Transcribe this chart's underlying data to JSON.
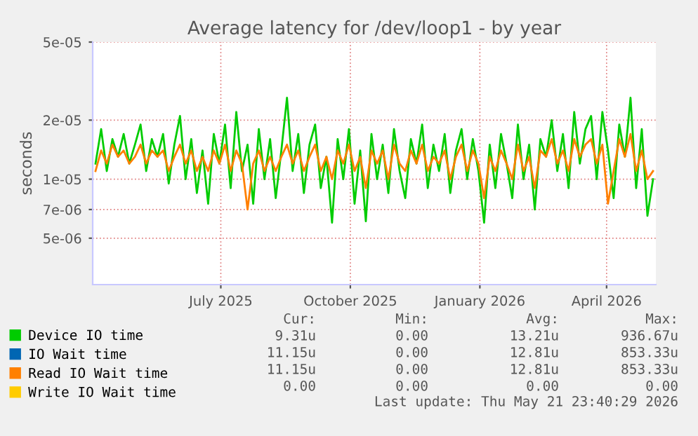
{
  "chart_data": {
    "type": "line",
    "title": "Average latency for /dev/loop1 - by year",
    "ylabel": "seconds",
    "log": "y",
    "ylim": [
      2.9e-06,
      5e-05
    ],
    "yticks": [
      5e-06,
      7e-06,
      1e-05,
      2e-05,
      5e-05
    ],
    "xlim": [
      "2025-04-16",
      "2026-05-21"
    ],
    "xticks": [
      {
        "value": "2025-07-16",
        "label": "July 2025"
      },
      {
        "value": "2025-10-16",
        "label": "October 2025"
      },
      {
        "value": "2026-01-16",
        "label": "January 2026"
      },
      {
        "value": "2026-04-16",
        "label": "April 2026"
      }
    ],
    "grid": true,
    "legend": "bottom",
    "x": [
      "2025-04-18",
      "2025-04-22",
      "2025-04-26",
      "2025-04-30",
      "2025-05-04",
      "2025-05-08",
      "2025-05-12",
      "2025-05-16",
      "2025-05-20",
      "2025-05-24",
      "2025-05-28",
      "2025-06-01",
      "2025-06-05",
      "2025-06-09",
      "2025-06-13",
      "2025-06-17",
      "2025-06-21",
      "2025-06-25",
      "2025-06-29",
      "2025-07-03",
      "2025-07-07",
      "2025-07-11",
      "2025-07-15",
      "2025-07-19",
      "2025-07-23",
      "2025-07-27",
      "2025-07-31",
      "2025-08-04",
      "2025-08-08",
      "2025-08-12",
      "2025-08-16",
      "2025-08-20",
      "2025-08-24",
      "2025-08-28",
      "2025-09-01",
      "2025-09-05",
      "2025-09-09",
      "2025-09-13",
      "2025-09-17",
      "2025-09-21",
      "2025-09-25",
      "2025-09-29",
      "2025-10-03",
      "2025-10-07",
      "2025-10-11",
      "2025-10-15",
      "2025-10-19",
      "2025-10-23",
      "2025-10-27",
      "2025-10-31",
      "2025-11-04",
      "2025-11-08",
      "2025-11-12",
      "2025-11-16",
      "2025-11-20",
      "2025-11-24",
      "2025-11-28",
      "2025-12-02",
      "2025-12-06",
      "2025-12-10",
      "2025-12-14",
      "2025-12-18",
      "2025-12-22",
      "2025-12-26",
      "2025-12-30",
      "2026-01-03",
      "2026-01-07",
      "2026-01-11",
      "2026-01-15",
      "2026-01-19",
      "2026-01-23",
      "2026-01-27",
      "2026-01-31",
      "2026-02-04",
      "2026-02-08",
      "2026-02-12",
      "2026-02-16",
      "2026-02-20",
      "2026-02-24",
      "2026-02-28",
      "2026-03-04",
      "2026-03-08",
      "2026-03-12",
      "2026-03-16",
      "2026-03-20",
      "2026-03-24",
      "2026-03-28",
      "2026-04-01",
      "2026-04-05",
      "2026-04-09",
      "2026-04-13",
      "2026-04-17",
      "2026-04-21",
      "2026-04-25",
      "2026-04-29",
      "2026-05-03",
      "2026-05-07",
      "2026-05-11",
      "2026-05-15",
      "2026-05-19"
    ],
    "series": [
      {
        "name": "Device IO time",
        "color": "#00cc00",
        "values": [
          1.2e-05,
          1.8e-05,
          1.1e-05,
          1.6e-05,
          1.3e-05,
          1.7e-05,
          1.2e-05,
          1.5e-05,
          1.9e-05,
          1.1e-05,
          1.6e-05,
          1.3e-05,
          1.7e-05,
          9.5e-06,
          1.5e-05,
          2.1e-05,
          1e-05,
          1.6e-05,
          8.5e-06,
          1.4e-05,
          7.5e-06,
          1.7e-05,
          1.2e-05,
          1.9e-05,
          9e-06,
          2.2e-05,
          1.1e-05,
          1.5e-05,
          7.5e-06,
          1.8e-05,
          1e-05,
          1.6e-05,
          8e-06,
          1.4e-05,
          2.6e-05,
          1.1e-05,
          1.7e-05,
          8.5e-06,
          1.5e-05,
          1.9e-05,
          9e-06,
          1.3e-05,
          6e-06,
          1.6e-05,
          1e-05,
          1.8e-05,
          7.5e-06,
          1.4e-05,
          6.1e-06,
          1.7e-05,
          1e-05,
          1.5e-05,
          8.5e-06,
          1.8e-05,
          1.1e-05,
          8e-06,
          1.6e-05,
          1.2e-05,
          1.9e-05,
          9e-06,
          1.5e-05,
          1.1e-05,
          1.7e-05,
          8.5e-06,
          1.4e-05,
          1.8e-05,
          1e-05,
          1.6e-05,
          1.1e-05,
          6e-06,
          1.5e-05,
          9e-06,
          1.7e-05,
          1.2e-05,
          8e-06,
          1.9e-05,
          1e-05,
          1.5e-05,
          7e-06,
          1.6e-05,
          1.3e-05,
          2e-05,
          1.1e-05,
          1.7e-05,
          9e-06,
          2.2e-05,
          1.2e-05,
          1.8e-05,
          2.1e-05,
          1e-05,
          2.2e-05,
          1.4e-05,
          8e-06,
          1.9e-05,
          1.3e-05,
          2.6e-05,
          9e-06,
          1.8e-05,
          6.5e-06,
          1e-05
        ]
      },
      {
        "name": "IO Wait time",
        "color": "#0066b3",
        "values": [
          null,
          null,
          null,
          null,
          null,
          null,
          null,
          null,
          null,
          null,
          null,
          null,
          null,
          null,
          null,
          null,
          null,
          null,
          null,
          null,
          null,
          null,
          null,
          null,
          null,
          null,
          null,
          null,
          null,
          null,
          null,
          null,
          null,
          null,
          null,
          null,
          null,
          null,
          null,
          null,
          null,
          null,
          null,
          null,
          null,
          null,
          null,
          null,
          null,
          null,
          null,
          null,
          null,
          null,
          null,
          null,
          null,
          null,
          null,
          null,
          null,
          null,
          null,
          null,
          null,
          null,
          null,
          null,
          null,
          null,
          null,
          null,
          null,
          null,
          null,
          null,
          null,
          null,
          null,
          null,
          null,
          null,
          null,
          null,
          null,
          null,
          null,
          null,
          null,
          null,
          null,
          null,
          null,
          null,
          null,
          null,
          null,
          null,
          null,
          null
        ]
      },
      {
        "name": "Read IO Wait time",
        "color": "#ff8000",
        "values": [
          1.1e-05,
          1.4e-05,
          1.2e-05,
          1.5e-05,
          1.3e-05,
          1.4e-05,
          1.2e-05,
          1.3e-05,
          1.5e-05,
          1.2e-05,
          1.4e-05,
          1.3e-05,
          1.4e-05,
          1.1e-05,
          1.3e-05,
          1.5e-05,
          1.2e-05,
          1.4e-05,
          1.1e-05,
          1.3e-05,
          1.1e-05,
          1.4e-05,
          1.2e-05,
          1.5e-05,
          1.1e-05,
          1.4e-05,
          1.2e-05,
          7e-06,
          1.2e-05,
          1.4e-05,
          1.1e-05,
          1.3e-05,
          1.1e-05,
          1.3e-05,
          1.5e-05,
          1.2e-05,
          1.4e-05,
          1.1e-05,
          1.3e-05,
          1.5e-05,
          1.1e-05,
          1.3e-05,
          1e-05,
          1.4e-05,
          1.2e-05,
          1.5e-05,
          1.1e-05,
          1.3e-05,
          9e-06,
          1.4e-05,
          1.2e-05,
          1.4e-05,
          1e-05,
          1.5e-05,
          1.2e-05,
          1.1e-05,
          1.4e-05,
          1.2e-05,
          1.5e-05,
          1.1e-05,
          1.3e-05,
          1.2e-05,
          1.4e-05,
          1e-05,
          1.3e-05,
          1.5e-05,
          1.1e-05,
          1.4e-05,
          1.2e-05,
          8e-06,
          1.3e-05,
          1.1e-05,
          1.4e-05,
          1.2e-05,
          1e-05,
          1.5e-05,
          1.1e-05,
          1.3e-05,
          9e-06,
          1.4e-05,
          1.3e-05,
          1.6e-05,
          1.2e-05,
          1.4e-05,
          1.1e-05,
          1.6e-05,
          1.3e-05,
          1.5e-05,
          1.6e-05,
          1.2e-05,
          1.5e-05,
          7.5e-06,
          1.1e-05,
          1.6e-05,
          1.3e-05,
          1.7e-05,
          1.1e-05,
          1.4e-05,
          1e-05,
          1.1e-05
        ]
      },
      {
        "name": "Write IO Wait time",
        "color": "#ffcc00",
        "values": [
          null,
          null,
          null,
          null,
          null,
          null,
          null,
          null,
          null,
          null,
          null,
          null,
          null,
          null,
          null,
          null,
          null,
          null,
          null,
          null,
          null,
          null,
          null,
          null,
          null,
          null,
          null,
          null,
          null,
          null,
          null,
          null,
          null,
          null,
          null,
          null,
          null,
          null,
          null,
          null,
          null,
          null,
          null,
          null,
          null,
          null,
          null,
          null,
          null,
          null,
          null,
          null,
          null,
          null,
          null,
          null,
          null,
          null,
          null,
          null,
          null,
          null,
          null,
          null,
          null,
          null,
          null,
          null,
          null,
          null,
          null,
          null,
          null,
          null,
          null,
          null,
          null,
          null,
          null,
          null,
          null,
          null,
          null,
          null,
          null,
          null,
          null,
          null,
          null,
          null,
          null,
          null,
          null,
          null,
          null,
          null,
          null,
          null,
          null,
          null
        ]
      }
    ],
    "annotations": [
      "Cur:",
      "Min:",
      "Avg:",
      "Max:",
      "9.31u",
      "0.00",
      "13.21u",
      "936.67u",
      "11.15u",
      "0.00",
      "12.81u",
      "853.33u",
      "11.15u",
      "0.00",
      "12.81u",
      "853.33u",
      "0.00",
      "0.00",
      "0.00",
      "0.00",
      "Last update: Thu May 21 23:40:29 2026"
    ]
  }
}
